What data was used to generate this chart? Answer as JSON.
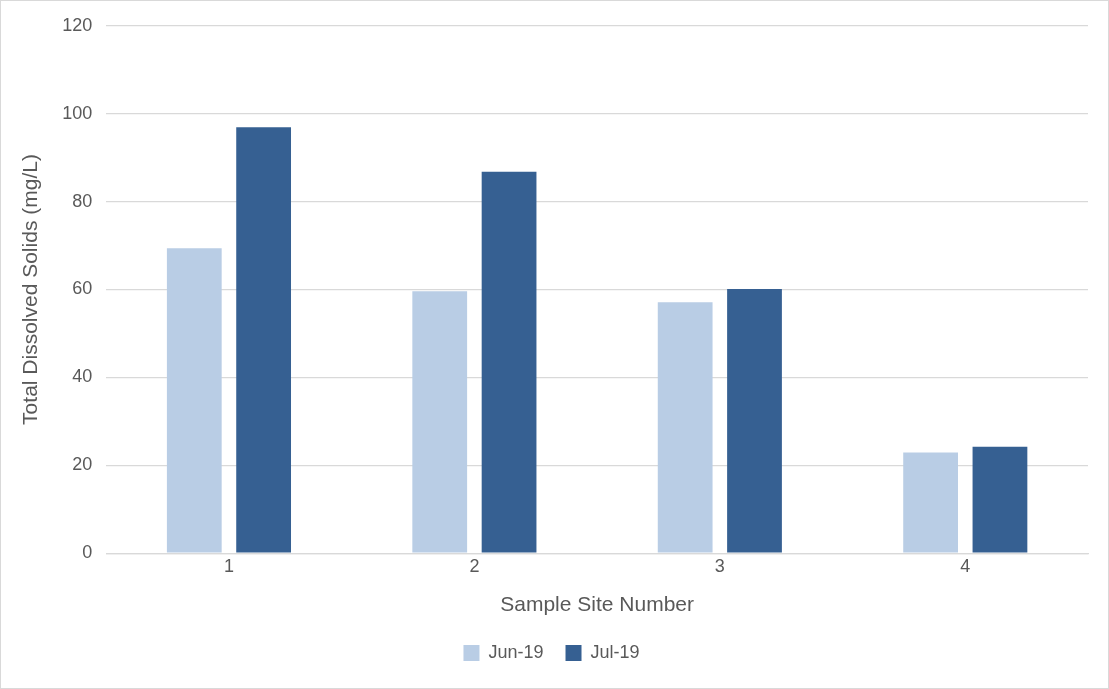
{
  "chart_data": {
    "type": "bar",
    "xlabel": "Sample Site Number",
    "ylabel": "Total Dissolved Solids (mg/L)",
    "categories": [
      "1",
      "2",
      "3",
      "4"
    ],
    "series": [
      {
        "name": "Jun-19",
        "color": "#b9cde5",
        "values": [
          69.4,
          59.6,
          57.1,
          22.9
        ]
      },
      {
        "name": "Jul-19",
        "color": "#366092",
        "values": [
          96.9,
          86.8,
          60.1,
          24.2
        ]
      }
    ],
    "ylim": [
      0,
      120
    ],
    "yticks": [
      0,
      20,
      40,
      60,
      80,
      100,
      120
    ],
    "grid": "y",
    "legend": "bottom"
  }
}
